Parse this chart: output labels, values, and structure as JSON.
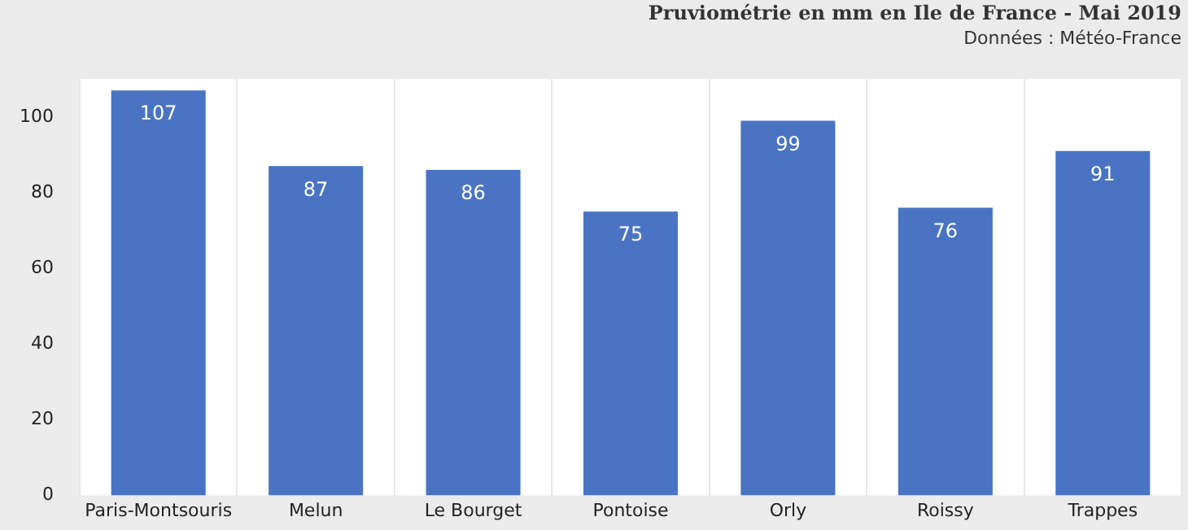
{
  "chart_data": {
    "type": "bar",
    "title": "Pruviométrie en mm en Ile de France - Mai 2019",
    "subtitle": "Données : Météo-France",
    "categories": [
      "Paris-Montsouris",
      "Melun",
      "Le Bourget",
      "Pontoise",
      "Orly",
      "Roissy",
      "Trappes"
    ],
    "values": [
      107,
      87,
      86,
      75,
      99,
      76,
      91
    ],
    "color": "#4a74c3",
    "ylim": [
      0,
      110
    ],
    "yticks": [
      0,
      20,
      40,
      60,
      80,
      100
    ],
    "grid": "x",
    "data_labels": true
  }
}
